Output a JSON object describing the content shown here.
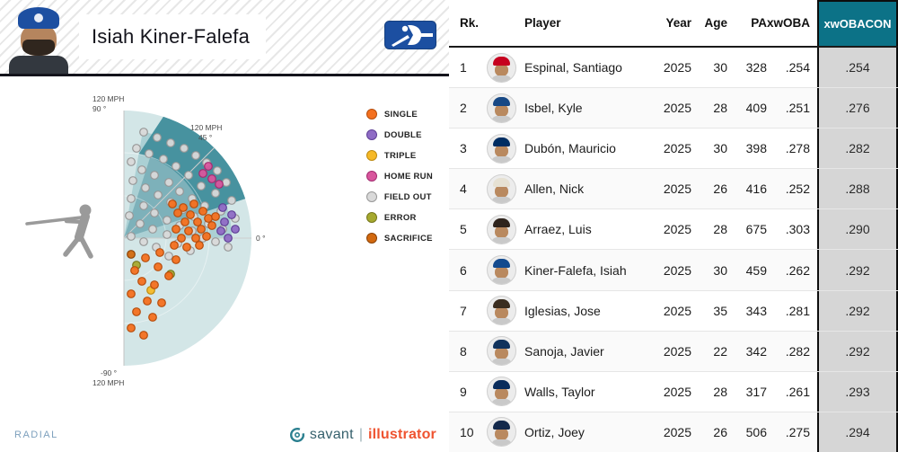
{
  "header": {
    "player_name": "Isiah Kiner-Falefa"
  },
  "chart": {
    "mode_label": "RADIAL",
    "brand": {
      "savant": "savant",
      "divider": "|",
      "illustrator": "illustrator"
    },
    "axis_labels": {
      "top_speed": "120 MPH",
      "top_angle": "90 °",
      "mid_speed": "120 MPH",
      "mid_angle": "45 °",
      "zero_angle": "0 °",
      "bottom_angle": "-90 °",
      "bottom_speed": "120 MPH"
    },
    "legend": [
      {
        "label": "SINGLE",
        "color": "#f4701f",
        "stroke": "#b54d0d"
      },
      {
        "label": "DOUBLE",
        "color": "#8f6cc5",
        "stroke": "#5f3f96"
      },
      {
        "label": "TRIPLE",
        "color": "#f6b927",
        "stroke": "#bd8a10"
      },
      {
        "label": "HOME RUN",
        "color": "#d8569d",
        "stroke": "#a32b70"
      },
      {
        "label": "FIELD OUT",
        "color": "#d9d9d9",
        "stroke": "#979797"
      },
      {
        "label": "ERROR",
        "color": "#a6a92f",
        "stroke": "#75771c"
      },
      {
        "label": "SACRIFICE",
        "color": "#d2690f",
        "stroke": "#8c4206"
      }
    ],
    "points": [
      [
        160,
        62,
        4
      ],
      [
        175,
        68,
        4
      ],
      [
        190,
        74,
        4
      ],
      [
        152,
        80,
        4
      ],
      [
        205,
        80,
        4
      ],
      [
        166,
        86,
        4
      ],
      [
        218,
        88,
        4
      ],
      [
        182,
        92,
        4
      ],
      [
        146,
        95,
        4
      ],
      [
        230,
        96,
        4
      ],
      [
        196,
        100,
        4
      ],
      [
        158,
        104,
        4
      ],
      [
        242,
        105,
        4
      ],
      [
        172,
        110,
        4
      ],
      [
        210,
        110,
        4
      ],
      [
        148,
        116,
        4
      ],
      [
        188,
        118,
        4
      ],
      [
        252,
        118,
        4
      ],
      [
        224,
        122,
        4
      ],
      [
        162,
        124,
        4
      ],
      [
        200,
        128,
        4
      ],
      [
        240,
        130,
        4
      ],
      [
        176,
        132,
        4
      ],
      [
        146,
        136,
        4
      ],
      [
        214,
        136,
        4
      ],
      [
        258,
        138,
        4
      ],
      [
        190,
        140,
        4
      ],
      [
        160,
        144,
        4
      ],
      [
        228,
        144,
        4
      ],
      [
        204,
        148,
        4
      ],
      [
        246,
        150,
        4
      ],
      [
        172,
        152,
        4
      ],
      [
        144,
        155,
        4
      ],
      [
        216,
        156,
        4
      ],
      [
        186,
        160,
        4
      ],
      [
        262,
        158,
        4
      ],
      [
        156,
        164,
        4
      ],
      [
        232,
        164,
        4
      ],
      [
        200,
        166,
        4
      ],
      [
        170,
        170,
        4
      ],
      [
        248,
        170,
        4
      ],
      [
        214,
        172,
        4
      ],
      [
        186,
        176,
        4
      ],
      [
        146,
        178,
        4
      ],
      [
        226,
        180,
        4
      ],
      [
        160,
        184,
        4
      ],
      [
        240,
        184,
        4
      ],
      [
        198,
        186,
        4
      ],
      [
        174,
        190,
        4
      ],
      [
        212,
        194,
        4
      ],
      [
        254,
        190,
        4
      ],
      [
        188,
        200,
        4
      ],
      [
        168,
        238,
        2
      ],
      [
        152,
        210,
        5
      ],
      [
        190,
        220,
        5
      ],
      [
        146,
        198,
        6
      ],
      [
        248,
        146,
        1
      ],
      [
        258,
        154,
        1
      ],
      [
        250,
        162,
        1
      ],
      [
        262,
        170,
        1
      ],
      [
        246,
        172,
        1
      ],
      [
        254,
        180,
        1
      ],
      [
        226,
        108,
        3
      ],
      [
        236,
        114,
        3
      ],
      [
        244,
        120,
        3
      ],
      [
        232,
        100,
        3
      ],
      [
        192,
        142,
        0
      ],
      [
        204,
        146,
        0
      ],
      [
        216,
        142,
        0
      ],
      [
        198,
        152,
        0
      ],
      [
        212,
        154,
        0
      ],
      [
        226,
        150,
        0
      ],
      [
        206,
        162,
        0
      ],
      [
        220,
        162,
        0
      ],
      [
        232,
        158,
        0
      ],
      [
        196,
        170,
        0
      ],
      [
        210,
        172,
        0
      ],
      [
        224,
        170,
        0
      ],
      [
        236,
        166,
        0
      ],
      [
        202,
        180,
        0
      ],
      [
        218,
        180,
        0
      ],
      [
        230,
        178,
        0
      ],
      [
        240,
        156,
        0
      ],
      [
        194,
        188,
        0
      ],
      [
        208,
        190,
        0
      ],
      [
        222,
        188,
        0
      ],
      [
        178,
        196,
        0
      ],
      [
        162,
        202,
        0
      ],
      [
        196,
        204,
        0
      ],
      [
        150,
        216,
        0
      ],
      [
        176,
        212,
        0
      ],
      [
        188,
        222,
        0
      ],
      [
        158,
        228,
        0
      ],
      [
        172,
        232,
        0
      ],
      [
        146,
        242,
        0
      ],
      [
        164,
        250,
        0
      ],
      [
        180,
        252,
        0
      ],
      [
        152,
        262,
        0
      ],
      [
        170,
        268,
        0
      ],
      [
        146,
        280,
        0
      ],
      [
        160,
        288,
        0
      ]
    ]
  },
  "table": {
    "columns": [
      "Rk.",
      "Player",
      "Year",
      "Age",
      "PA",
      "xwOBA",
      "xwOBACON"
    ],
    "highlight": {
      "header_bg": "#0c7287",
      "column_bg": "#d6d6d6"
    },
    "rows": [
      {
        "rk": "1",
        "player": "Espinal, Santiago",
        "year": "2025",
        "age": "30",
        "pa": "328",
        "xwoba": ".254",
        "xwobacon": ".254",
        "cap": "#c6011f"
      },
      {
        "rk": "2",
        "player": "Isbel, Kyle",
        "year": "2025",
        "age": "28",
        "pa": "409",
        "xwoba": ".251",
        "xwobacon": ".276",
        "cap": "#174885"
      },
      {
        "rk": "3",
        "player": "Dubón, Mauricio",
        "year": "2025",
        "age": "30",
        "pa": "398",
        "xwoba": ".278",
        "xwobacon": ".282",
        "cap": "#002d62"
      },
      {
        "rk": "4",
        "player": "Allen, Nick",
        "year": "2025",
        "age": "26",
        "pa": "416",
        "xwoba": ".252",
        "xwobacon": ".288",
        "cap": "#e6e1d3"
      },
      {
        "rk": "5",
        "player": "Arraez, Luis",
        "year": "2025",
        "age": "28",
        "pa": "675",
        "xwoba": ".303",
        "xwobacon": ".290",
        "cap": "#2f241d"
      },
      {
        "rk": "6",
        "player": "Kiner-Falefa, Isiah",
        "year": "2025",
        "age": "30",
        "pa": "459",
        "xwoba": ".262",
        "xwobacon": ".292",
        "cap": "#134a8e"
      },
      {
        "rk": "7",
        "player": "Iglesias, Jose",
        "year": "2025",
        "age": "35",
        "pa": "343",
        "xwoba": ".281",
        "xwobacon": ".292",
        "cap": "#3a2d1f"
      },
      {
        "rk": "8",
        "player": "Sanoja, Javier",
        "year": "2025",
        "age": "22",
        "pa": "342",
        "xwoba": ".282",
        "xwobacon": ".292",
        "cap": "#10325c"
      },
      {
        "rk": "9",
        "player": "Walls, Taylor",
        "year": "2025",
        "age": "28",
        "pa": "317",
        "xwoba": ".261",
        "xwobacon": ".293",
        "cap": "#092c5c"
      },
      {
        "rk": "10",
        "player": "Ortiz, Joey",
        "year": "2025",
        "age": "26",
        "pa": "506",
        "xwoba": ".275",
        "xwobacon": ".294",
        "cap": "#12284b"
      }
    ]
  }
}
